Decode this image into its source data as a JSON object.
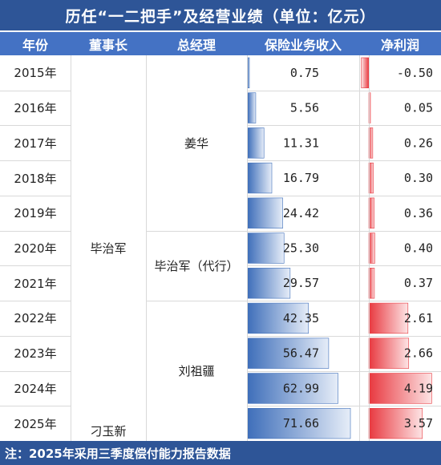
{
  "title": "历任“一二把手”及经营业绩（单位：亿元）",
  "headers": {
    "year": "年份",
    "chairman": "董事长",
    "gm": "总经理",
    "premium": "保险业务收入",
    "profit": "净利润"
  },
  "footer": "注：2025年采用三季度偿付能力报告数据",
  "chairmen": [
    {
      "name": "毕治军",
      "from_year": "2015年",
      "to_year": "2025年"
    },
    {
      "name": "刁玉新",
      "from_year": "2025年",
      "to_year": "2025年"
    }
  ],
  "general_managers": [
    {
      "name": "姜华",
      "from_year": "2015年",
      "to_year": "2019年"
    },
    {
      "name": "毕治军（代行）",
      "from_year": "2020年",
      "to_year": "2021年"
    },
    {
      "name": "刘祖疆",
      "from_year": "2022年",
      "to_year": "2025年"
    }
  ],
  "colors": {
    "title_bg": "#2e5597",
    "header_bg": "#4472c4",
    "bar_blue": "#4f7fc6",
    "bar_red": "#e8383f"
  },
  "chart_data": {
    "type": "table",
    "years": [
      "2015年",
      "2016年",
      "2017年",
      "2018年",
      "2019年",
      "2020年",
      "2021年",
      "2022年",
      "2023年",
      "2024年",
      "2025年"
    ],
    "series": [
      {
        "name": "保险业务收入",
        "values": [
          0.75,
          5.56,
          11.31,
          16.79,
          24.42,
          25.3,
          29.57,
          42.35,
          56.47,
          62.99,
          71.66
        ],
        "labels": [
          "0.75",
          "5.56",
          "11.31",
          "16.79",
          "24.42",
          "25.30",
          "29.57",
          "42.35",
          "56.47",
          "62.99",
          "71.66"
        ]
      },
      {
        "name": "净利润",
        "values": [
          -0.5,
          0.05,
          0.26,
          0.3,
          0.36,
          0.4,
          0.37,
          2.61,
          2.66,
          4.19,
          3.57
        ],
        "labels": [
          "-0.50",
          "0.05",
          "0.26",
          "0.30",
          "0.36",
          "0.40",
          "0.37",
          "2.61",
          "2.66",
          "4.19",
          "3.57"
        ]
      }
    ]
  }
}
